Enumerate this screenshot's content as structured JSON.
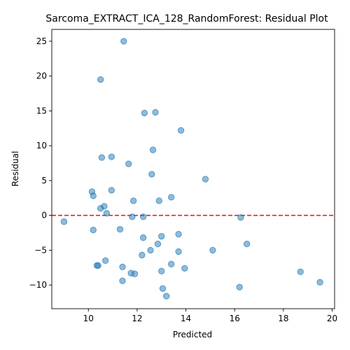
{
  "chart_data": {
    "type": "scatter",
    "title": "Sarcoma_EXTRACT_ICA_128_RandomForest: Residual Plot",
    "xlabel": "Predicted",
    "ylabel": "Residual",
    "xlim": [
      8.5,
      20.1
    ],
    "ylim": [
      -13.4,
      26.7
    ],
    "xticks": [
      10,
      12,
      14,
      16,
      18,
      20
    ],
    "yticks": [
      -10,
      -5,
      0,
      5,
      10,
      15,
      20,
      25
    ],
    "point_color": "#1f77b4",
    "reference_line": {
      "y": 0,
      "color": "#d62728",
      "style": "dashed"
    },
    "grid": false,
    "points": [
      {
        "x": 11.45,
        "y": 25.0
      },
      {
        "x": 10.5,
        "y": 19.5
      },
      {
        "x": 12.3,
        "y": 14.7
      },
      {
        "x": 12.75,
        "y": 14.8
      },
      {
        "x": 13.8,
        "y": 12.2
      },
      {
        "x": 12.65,
        "y": 9.4
      },
      {
        "x": 10.55,
        "y": 8.3
      },
      {
        "x": 10.95,
        "y": 8.4
      },
      {
        "x": 11.65,
        "y": 7.4
      },
      {
        "x": 12.6,
        "y": 5.9
      },
      {
        "x": 14.8,
        "y": 5.2
      },
      {
        "x": 10.15,
        "y": 3.4
      },
      {
        "x": 10.2,
        "y": 2.8
      },
      {
        "x": 10.95,
        "y": 3.6
      },
      {
        "x": 11.85,
        "y": 2.1
      },
      {
        "x": 12.9,
        "y": 2.1
      },
      {
        "x": 13.4,
        "y": 2.6
      },
      {
        "x": 10.65,
        "y": 1.3
      },
      {
        "x": 10.5,
        "y": 1.0
      },
      {
        "x": 10.75,
        "y": 0.3
      },
      {
        "x": 9.0,
        "y": -0.9
      },
      {
        "x": 11.8,
        "y": -0.2
      },
      {
        "x": 12.25,
        "y": -0.2
      },
      {
        "x": 16.25,
        "y": -0.3
      },
      {
        "x": 10.2,
        "y": -2.1
      },
      {
        "x": 11.3,
        "y": -2.0
      },
      {
        "x": 12.25,
        "y": -3.2
      },
      {
        "x": 13.0,
        "y": -3.0
      },
      {
        "x": 13.7,
        "y": -2.7
      },
      {
        "x": 12.85,
        "y": -4.1
      },
      {
        "x": 12.55,
        "y": -5.0
      },
      {
        "x": 12.2,
        "y": -5.7
      },
      {
        "x": 13.7,
        "y": -5.2
      },
      {
        "x": 15.1,
        "y": -5.0
      },
      {
        "x": 16.5,
        "y": -4.1
      },
      {
        "x": 10.7,
        "y": -6.5
      },
      {
        "x": 10.35,
        "y": -7.2
      },
      {
        "x": 10.4,
        "y": -7.2
      },
      {
        "x": 11.4,
        "y": -7.4
      },
      {
        "x": 13.4,
        "y": -7.0
      },
      {
        "x": 13.95,
        "y": -7.6
      },
      {
        "x": 11.75,
        "y": -8.3
      },
      {
        "x": 11.9,
        "y": -8.4
      },
      {
        "x": 13.0,
        "y": -8.0
      },
      {
        "x": 18.7,
        "y": -8.1
      },
      {
        "x": 11.4,
        "y": -9.4
      },
      {
        "x": 19.5,
        "y": -9.6
      },
      {
        "x": 13.05,
        "y": -10.5
      },
      {
        "x": 16.2,
        "y": -10.3
      },
      {
        "x": 13.2,
        "y": -11.6
      }
    ]
  }
}
